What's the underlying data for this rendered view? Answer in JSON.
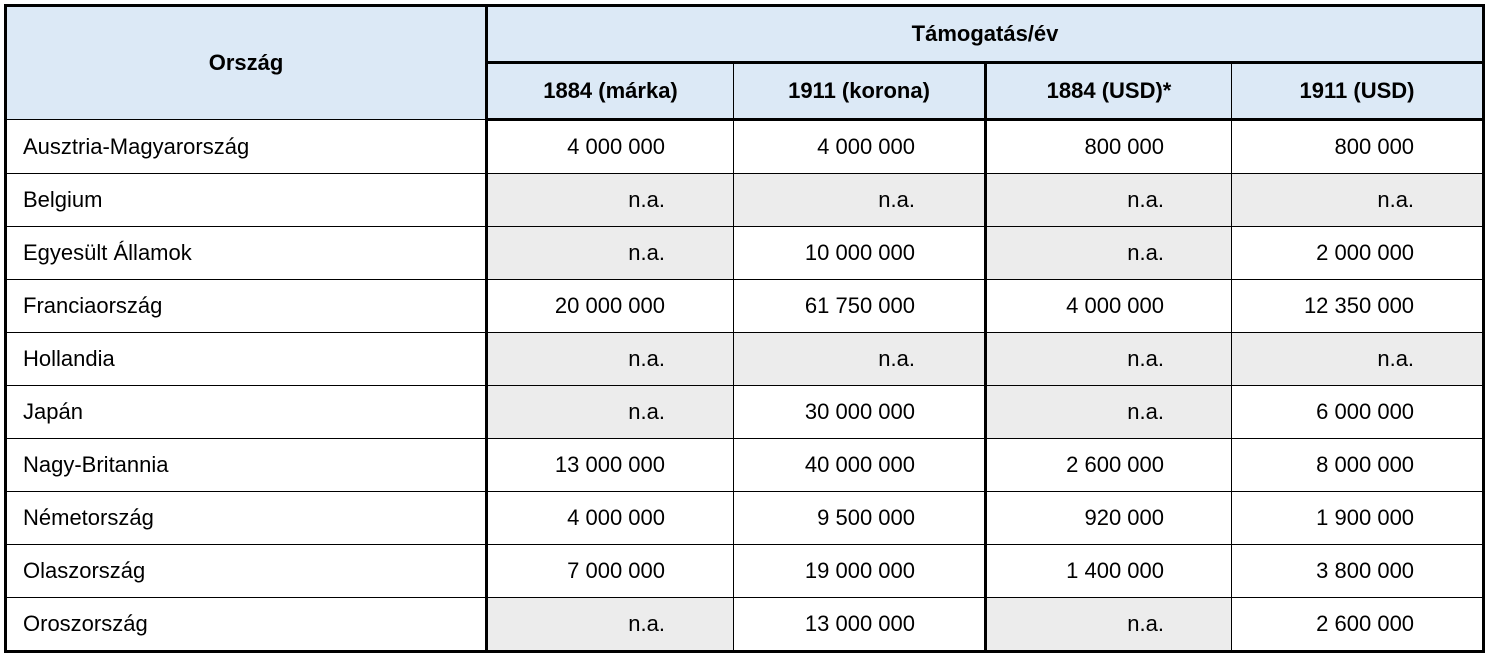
{
  "table": {
    "country_header": "Ország",
    "group_header": "Támogatás/év",
    "columns": [
      "1884 (márka)",
      "1911 (korona)",
      "1884 (USD)*",
      "1911 (USD)"
    ],
    "rows": [
      {
        "country": "Ausztria-Magyarország",
        "values": [
          "4 000 000",
          "4 000 000",
          "800 000",
          "800 000"
        ]
      },
      {
        "country": "Belgium",
        "values": [
          "n.a.",
          "n.a.",
          "n.a.",
          "n.a."
        ]
      },
      {
        "country": "Egyesült Államok",
        "values": [
          "n.a.",
          "10 000 000",
          "n.a.",
          "2 000 000"
        ]
      },
      {
        "country": "Franciaország",
        "values": [
          "20 000 000",
          "61 750 000",
          "4 000 000",
          "12 350 000"
        ]
      },
      {
        "country": "Hollandia",
        "values": [
          "n.a.",
          "n.a.",
          "n.a.",
          "n.a."
        ]
      },
      {
        "country": "Japán",
        "values": [
          "n.a.",
          "30 000 000",
          "n.a.",
          "6 000 000"
        ]
      },
      {
        "country": "Nagy-Britannia",
        "values": [
          "13 000 000",
          "40 000 000",
          "2 600 000",
          "8 000 000"
        ]
      },
      {
        "country": "Németország",
        "values": [
          "4 000 000",
          "9 500 000",
          "920 000",
          "1 900 000"
        ]
      },
      {
        "country": "Olaszország",
        "values": [
          "7 000 000",
          "19 000 000",
          "1 400 000",
          "3 800 000"
        ]
      },
      {
        "country": "Oroszország",
        "values": [
          "n.a.",
          "13 000 000",
          "n.a.",
          "2 600 000"
        ]
      }
    ]
  },
  "colors": {
    "header_background": "#dce9f6",
    "na_background": "#ececec",
    "border": "#000000"
  }
}
